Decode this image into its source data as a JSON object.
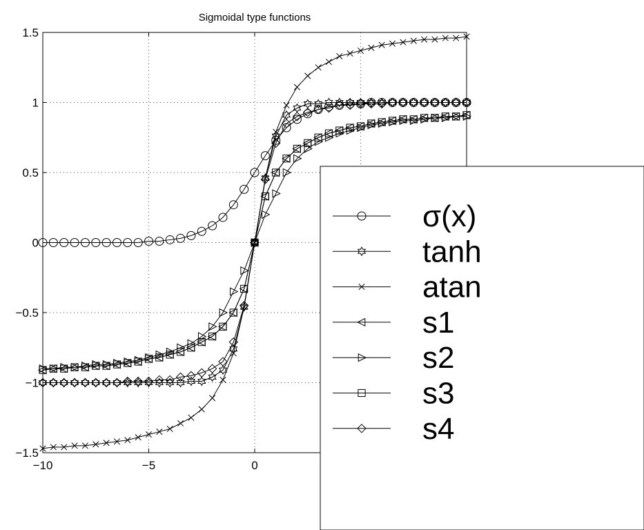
{
  "chart_data": {
    "type": "line",
    "title": "Sigmoidal type functions",
    "xlabel": "",
    "ylabel": "",
    "xlim": [
      -10,
      10
    ],
    "ylim": [
      -1.5,
      1.5
    ],
    "x_ticks": [
      "−10",
      "−5",
      "0"
    ],
    "x_tick_values": [
      -10,
      -5,
      0
    ],
    "y_ticks": [
      "1.5",
      "1",
      "0.5",
      "0",
      "−0.5",
      "−1",
      "−1.5"
    ],
    "y_tick_values": [
      1.5,
      1,
      0.5,
      0,
      -0.5,
      -1,
      -1.5
    ],
    "grid": true,
    "legend_position": "right",
    "x": [
      -10,
      -9.5,
      -9,
      -8.5,
      -8,
      -7.5,
      -7,
      -6.5,
      -6,
      -5.5,
      -5,
      -4.5,
      -4,
      -3.5,
      -3,
      -2.5,
      -2,
      -1.5,
      -1,
      -0.5,
      0,
      0.5,
      1,
      1.5,
      2,
      2.5,
      3,
      3.5,
      4,
      4.5,
      5,
      5.5,
      6,
      6.5,
      7,
      7.5,
      8,
      8.5,
      9,
      9.5,
      10
    ],
    "series": [
      {
        "name": "σ(x)",
        "marker": "circle",
        "values": [
          0,
          0,
          0,
          0,
          0,
          0,
          0,
          0,
          0,
          0,
          0.01,
          0.01,
          0.02,
          0.03,
          0.05,
          0.08,
          0.12,
          0.18,
          0.27,
          0.38,
          0.5,
          0.62,
          0.73,
          0.82,
          0.88,
          0.92,
          0.95,
          0.97,
          0.98,
          0.99,
          0.99,
          1,
          1,
          1,
          1,
          1,
          1,
          1,
          1,
          1,
          1
        ]
      },
      {
        "name": "tanh",
        "marker": "hexagram",
        "values": [
          -1,
          -1,
          -1,
          -1,
          -1,
          -1,
          -1,
          -1,
          -1,
          -1,
          -1,
          -1,
          -1,
          -1,
          -0.99,
          -0.99,
          -0.96,
          -0.91,
          -0.76,
          -0.46,
          0,
          0.46,
          0.76,
          0.91,
          0.96,
          0.99,
          0.99,
          1,
          1,
          1,
          1,
          1,
          1,
          1,
          1,
          1,
          1,
          1,
          1,
          1,
          1
        ]
      },
      {
        "name": "atan",
        "marker": "x",
        "values": [
          -1.47,
          -1.46,
          -1.46,
          -1.45,
          -1.45,
          -1.44,
          -1.43,
          -1.42,
          -1.41,
          -1.39,
          -1.37,
          -1.35,
          -1.33,
          -1.29,
          -1.25,
          -1.19,
          -1.11,
          -0.98,
          -0.79,
          -0.46,
          0,
          0.46,
          0.79,
          0.98,
          1.11,
          1.19,
          1.25,
          1.29,
          1.33,
          1.35,
          1.37,
          1.39,
          1.41,
          1.42,
          1.43,
          1.44,
          1.45,
          1.45,
          1.46,
          1.46,
          1.47
        ]
      },
      {
        "name": "s1",
        "marker": "triangle-left",
        "values": [
          -0.91,
          -0.9,
          -0.9,
          -0.89,
          -0.89,
          -0.88,
          -0.88,
          -0.87,
          -0.86,
          -0.85,
          -0.83,
          -0.82,
          -0.8,
          -0.78,
          -0.75,
          -0.71,
          -0.67,
          -0.6,
          -0.5,
          -0.33,
          0,
          0.33,
          0.5,
          0.6,
          0.67,
          0.71,
          0.75,
          0.78,
          0.8,
          0.82,
          0.83,
          0.85,
          0.86,
          0.87,
          0.88,
          0.88,
          0.89,
          0.89,
          0.9,
          0.9,
          0.91
        ]
      },
      {
        "name": "s2",
        "marker": "triangle-right",
        "values": [
          -0.9,
          -0.9,
          -0.89,
          -0.89,
          -0.88,
          -0.87,
          -0.87,
          -0.86,
          -0.85,
          -0.84,
          -0.82,
          -0.8,
          -0.78,
          -0.75,
          -0.72,
          -0.67,
          -0.6,
          -0.5,
          -0.35,
          -0.2,
          0,
          0.2,
          0.35,
          0.5,
          0.6,
          0.67,
          0.72,
          0.75,
          0.78,
          0.8,
          0.82,
          0.84,
          0.85,
          0.86,
          0.87,
          0.87,
          0.88,
          0.89,
          0.89,
          0.9,
          0.9
        ]
      },
      {
        "name": "s3",
        "marker": "square",
        "values": [
          -0.91,
          -0.9,
          -0.9,
          -0.89,
          -0.89,
          -0.88,
          -0.88,
          -0.87,
          -0.86,
          -0.85,
          -0.83,
          -0.82,
          -0.8,
          -0.78,
          -0.75,
          -0.71,
          -0.67,
          -0.6,
          -0.5,
          -0.33,
          0,
          0.33,
          0.5,
          0.6,
          0.67,
          0.71,
          0.75,
          0.78,
          0.8,
          0.82,
          0.83,
          0.85,
          0.86,
          0.87,
          0.88,
          0.88,
          0.89,
          0.89,
          0.9,
          0.9,
          0.91
        ]
      },
      {
        "name": "s4",
        "marker": "diamond",
        "values": [
          -1,
          -1,
          -1,
          -1,
          -1,
          -1,
          -1,
          -1,
          -0.99,
          -0.99,
          -0.99,
          -0.98,
          -0.98,
          -0.96,
          -0.95,
          -0.93,
          -0.9,
          -0.85,
          -0.71,
          -0.45,
          0,
          0.45,
          0.71,
          0.85,
          0.9,
          0.93,
          0.95,
          0.96,
          0.98,
          0.98,
          0.99,
          0.99,
          0.99,
          1,
          1,
          1,
          1,
          1,
          1,
          1,
          1
        ]
      }
    ]
  }
}
